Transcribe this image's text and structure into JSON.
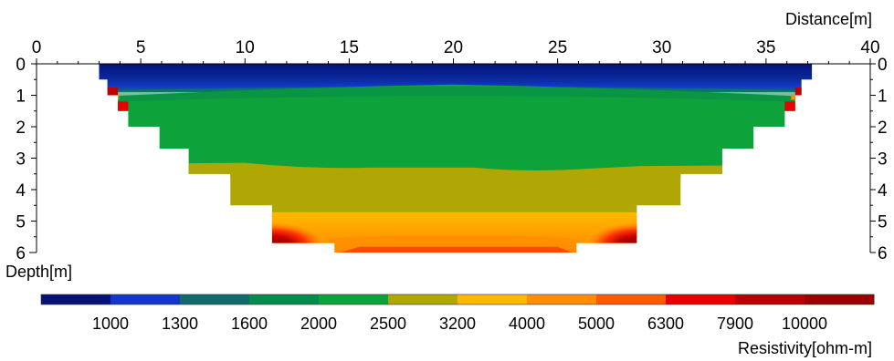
{
  "chart_data": {
    "type": "heatmap",
    "title": "",
    "xlabel": "Distance[m]",
    "ylabel": "Depth[m]",
    "xlim": [
      0,
      40
    ],
    "ylim": [
      0,
      6
    ],
    "x_ticks": [
      0,
      5,
      10,
      15,
      20,
      25,
      30,
      35,
      40
    ],
    "y_ticks": [
      0,
      1,
      2,
      3,
      4,
      5,
      6
    ],
    "colorbar": {
      "label": "Resistivity[ohm-m]",
      "tick_labels": [
        "1000",
        "1300",
        "1600",
        "2000",
        "2500",
        "3200",
        "4000",
        "5000",
        "6300",
        "7900",
        "10000"
      ],
      "colors": [
        "#06127a",
        "#1338c8",
        "#0f6c6c",
        "#078a4e",
        "#0ea33a",
        "#b0a604",
        "#ffb800",
        "#ff8f00",
        "#ff5a00",
        "#e80000",
        "#b80000",
        "#960000"
      ]
    },
    "section_profile": [
      {
        "depth": 0.5,
        "x_start": 3.0,
        "x_end": 37.2
      },
      {
        "depth": 1.0,
        "x_start": 3.4,
        "x_end": 36.7
      },
      {
        "depth": 1.5,
        "x_start": 3.9,
        "x_end": 36.4
      },
      {
        "depth": 2.0,
        "x_start": 4.4,
        "x_end": 35.9
      },
      {
        "depth": 2.7,
        "x_start": 5.9,
        "x_end": 34.4
      },
      {
        "depth": 3.5,
        "x_start": 7.3,
        "x_end": 32.9
      },
      {
        "depth": 4.5,
        "x_start": 9.3,
        "x_end": 30.9
      },
      {
        "depth": 5.7,
        "x_start": 11.3,
        "x_end": 28.8
      },
      {
        "depth": 6.0,
        "x_start": 14.3,
        "x_end": 25.9
      }
    ],
    "layers": [
      {
        "resistivity_range": "<1000",
        "top_depth": 0.0,
        "bottom_depth": 0.5
      },
      {
        "resistivity_range": "1000-1600",
        "top_depth": 0.5,
        "bottom_depth": 0.8
      },
      {
        "resistivity_range": "2000-2500",
        "top_depth": 0.8,
        "bottom_depth": 3.3
      },
      {
        "resistivity_range": "2500-3200",
        "top_depth": 3.3,
        "bottom_depth": 4.7
      },
      {
        "resistivity_range": "3200-4000",
        "top_depth": 4.7,
        "bottom_depth": 5.4
      },
      {
        "resistivity_range": "4000-6300",
        "top_depth": 5.4,
        "bottom_depth": 6.0
      }
    ],
    "anomalies": [
      {
        "resistivity_range": ">7900",
        "x": 3.6,
        "depth": 1.0
      },
      {
        "resistivity_range": ">7900",
        "x": 36.5,
        "depth": 1.0
      },
      {
        "resistivity_range": ">7900",
        "x": 12.0,
        "depth": 5.5
      },
      {
        "resistivity_range": ">7900",
        "x": 28.0,
        "depth": 5.5
      }
    ]
  }
}
